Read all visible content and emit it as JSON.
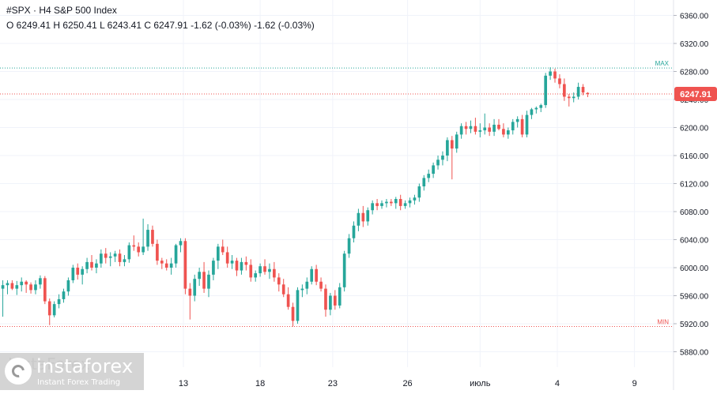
{
  "header": {
    "symbol_line": "#SPX · H4 S&P 500 Index",
    "ohlc_line": "O 6249.41 H 6250.41 L 6243.41 C 6247.91 -1.62 (-0.03%) -1.62 (-0.03%)"
  },
  "watermark": {
    "faint_text": "InstaForex",
    "brand": "instaforex",
    "tagline": "Instant Forex Trading"
  },
  "colors": {
    "up": "#26a69a",
    "down": "#ef5350",
    "max_line": "#26a69a",
    "min_line": "#ef5350",
    "price_line": "#ef5350",
    "price_badge": "#ef5350",
    "axis_text": "#131722",
    "grid": "#f0f3fa"
  },
  "chart_data": {
    "type": "candlestick",
    "timeframe": "H4",
    "y_range": [
      5858,
      6382
    ],
    "y_ticks": [
      "5880.00",
      "5920.00",
      "5960.00",
      "6000.00",
      "6040.00",
      "6080.00",
      "6120.00",
      "6160.00",
      "6200.00",
      "6240.00",
      "6280.00",
      "6320.00",
      "6360.00"
    ],
    "x_ticks": [
      "13",
      "18",
      "23",
      "26",
      "июль",
      "4",
      "9"
    ],
    "x_tick_index": [
      38.6,
      55,
      70.5,
      86.5,
      102,
      118.5,
      135
    ],
    "x_window": [
      -0.6,
      143
    ],
    "max_line": {
      "label": "MAX",
      "value": 6285
    },
    "min_line": {
      "label": "MIN",
      "value": 5916
    },
    "last_price": {
      "label": "6247.91",
      "value": 6247.91
    },
    "candles": [
      [
        5970,
        5982,
        5930,
        5975
      ],
      [
        5975,
        5982,
        5962,
        5978
      ],
      [
        5978,
        5982,
        5968,
        5970
      ],
      [
        5970,
        5981,
        5961,
        5975
      ],
      [
        5975,
        5986,
        5966,
        5980
      ],
      [
        5980,
        5982,
        5964,
        5976
      ],
      [
        5976,
        5979,
        5963,
        5968
      ],
      [
        5968,
        5982,
        5962,
        5976
      ],
      [
        5976,
        5989,
        5970,
        5985
      ],
      [
        5985,
        5988,
        5948,
        5952
      ],
      [
        5952,
        5956,
        5918,
        5932
      ],
      [
        5932,
        5952,
        5929,
        5948
      ],
      [
        5948,
        5962,
        5942,
        5955
      ],
      [
        5955,
        5970,
        5950,
        5966
      ],
      [
        5966,
        5986,
        5960,
        5982
      ],
      [
        5982,
        6004,
        5978,
        6000
      ],
      [
        6000,
        6006,
        5983,
        5990
      ],
      [
        5990,
        6002,
        5976,
        5998
      ],
      [
        5998,
        6014,
        5992,
        6008
      ],
      [
        6008,
        6018,
        5996,
        6000
      ],
      [
        6000,
        6012,
        5992,
        6006
      ],
      [
        6006,
        6026,
        6000,
        6020
      ],
      [
        6020,
        6028,
        6006,
        6014
      ],
      [
        6014,
        6022,
        6002,
        6016
      ],
      [
        6016,
        6024,
        6008,
        6020
      ],
      [
        6020,
        6026,
        6002,
        6008
      ],
      [
        6008,
        6018,
        6002,
        6012
      ],
      [
        6012,
        6036,
        6007,
        6032
      ],
      [
        6032,
        6046,
        6024,
        6030
      ],
      [
        6030,
        6036,
        6016,
        6022
      ],
      [
        6022,
        6070,
        6018,
        6030
      ],
      [
        6030,
        6062,
        6024,
        6054
      ],
      [
        6054,
        6060,
        6030,
        6034
      ],
      [
        6034,
        6040,
        6004,
        6010
      ],
      [
        6010,
        6014,
        5998,
        6006
      ],
      [
        6006,
        6012,
        5996,
        6000
      ],
      [
        6000,
        6014,
        5990,
        6006
      ],
      [
        6006,
        6034,
        6000,
        6032
      ],
      [
        6032,
        6042,
        6022,
        6038
      ],
      [
        6038,
        6042,
        5962,
        5970
      ],
      [
        5970,
        5978,
        5926,
        5960
      ],
      [
        5960,
        5990,
        5952,
        5984
      ],
      [
        5984,
        6000,
        5974,
        5994
      ],
      [
        5994,
        6008,
        5964,
        5970
      ],
      [
        5970,
        5996,
        5958,
        5990
      ],
      [
        5990,
        6014,
        5982,
        6010
      ],
      [
        6010,
        6034,
        5998,
        6030
      ],
      [
        6030,
        6040,
        6018,
        6022
      ],
      [
        6022,
        6030,
        6000,
        6006
      ],
      [
        6006,
        6018,
        5998,
        6010
      ],
      [
        6010,
        6014,
        5988,
        5996
      ],
      [
        5996,
        6014,
        5990,
        6008
      ],
      [
        6008,
        6016,
        5996,
        6004
      ],
      [
        6004,
        6012,
        5980,
        5986
      ],
      [
        5986,
        5996,
        5980,
        5992
      ],
      [
        5992,
        6006,
        5987,
        6002
      ],
      [
        6002,
        6012,
        5990,
        5994
      ],
      [
        5994,
        6006,
        5984,
        5998
      ],
      [
        5998,
        6008,
        5980,
        5986
      ],
      [
        5986,
        5992,
        5966,
        5976
      ],
      [
        5976,
        5984,
        5958,
        5962
      ],
      [
        5962,
        5972,
        5940,
        5944
      ],
      [
        5944,
        5950,
        5916,
        5924
      ],
      [
        5924,
        5972,
        5920,
        5968
      ],
      [
        5968,
        5976,
        5958,
        5970
      ],
      [
        5970,
        5986,
        5962,
        5980
      ],
      [
        5980,
        6002,
        5976,
        5998
      ],
      [
        5998,
        6004,
        5975,
        5980
      ],
      [
        5980,
        5986,
        5966,
        5970
      ],
      [
        5970,
        5976,
        5930,
        5940
      ],
      [
        5940,
        5964,
        5932,
        5960
      ],
      [
        5960,
        5968,
        5940,
        5946
      ],
      [
        5946,
        5978,
        5942,
        5972
      ],
      [
        5972,
        6024,
        5966,
        6020
      ],
      [
        6020,
        6048,
        6014,
        6042
      ],
      [
        6042,
        6066,
        6036,
        6060
      ],
      [
        6060,
        6084,
        6052,
        6078
      ],
      [
        6078,
        6088,
        6058,
        6066
      ],
      [
        6066,
        6086,
        6060,
        6082
      ],
      [
        6082,
        6096,
        6076,
        6092
      ],
      [
        6092,
        6098,
        6082,
        6088
      ],
      [
        6088,
        6096,
        6084,
        6092
      ],
      [
        6092,
        6098,
        6086,
        6094
      ],
      [
        6094,
        6098,
        6088,
        6092
      ],
      [
        6092,
        6101,
        6084,
        6098
      ],
      [
        6098,
        6104,
        6082,
        6088
      ],
      [
        6088,
        6096,
        6084,
        6092
      ],
      [
        6092,
        6100,
        6086,
        6096
      ],
      [
        6096,
        6104,
        6090,
        6100
      ],
      [
        6100,
        6120,
        6094,
        6116
      ],
      [
        6116,
        6132,
        6110,
        6128
      ],
      [
        6128,
        6140,
        6122,
        6134
      ],
      [
        6134,
        6150,
        6128,
        6146
      ],
      [
        6146,
        6160,
        6140,
        6154
      ],
      [
        6154,
        6166,
        6146,
        6160
      ],
      [
        6160,
        6186,
        6152,
        6182
      ],
      [
        6182,
        6188,
        6126,
        6170
      ],
      [
        6170,
        6194,
        6164,
        6190
      ],
      [
        6190,
        6206,
        6184,
        6202
      ],
      [
        6202,
        6208,
        6190,
        6198
      ],
      [
        6198,
        6210,
        6192,
        6202
      ],
      [
        6202,
        6214,
        6190,
        6194
      ],
      [
        6194,
        6206,
        6186,
        6196
      ],
      [
        6196,
        6220,
        6190,
        6200
      ],
      [
        6200,
        6206,
        6188,
        6194
      ],
      [
        6194,
        6212,
        6188,
        6204
      ],
      [
        6204,
        6212,
        6196,
        6198
      ],
      [
        6198,
        6206,
        6186,
        6190
      ],
      [
        6190,
        6200,
        6184,
        6196
      ],
      [
        6196,
        6212,
        6190,
        6208
      ],
      [
        6208,
        6216,
        6200,
        6212
      ],
      [
        6212,
        6218,
        6186,
        6190
      ],
      [
        6190,
        6224,
        6186,
        6218
      ],
      [
        6218,
        6228,
        6212,
        6226
      ],
      [
        6226,
        6230,
        6220,
        6228
      ],
      [
        6228,
        6234,
        6222,
        6232
      ],
      [
        6232,
        6278,
        6228,
        6274
      ],
      [
        6274,
        6286,
        6268,
        6280
      ],
      [
        6280,
        6284,
        6264,
        6270
      ],
      [
        6270,
        6276,
        6256,
        6262
      ],
      [
        6262,
        6270,
        6238,
        6244
      ],
      [
        6244,
        6248,
        6230,
        6242
      ],
      [
        6242,
        6250,
        6236,
        6244
      ],
      [
        6244,
        6264,
        6240,
        6258
      ],
      [
        6258,
        6262,
        6246,
        6250
      ],
      [
        6249.41,
        6250.41,
        6243.41,
        6247.91
      ]
    ]
  }
}
